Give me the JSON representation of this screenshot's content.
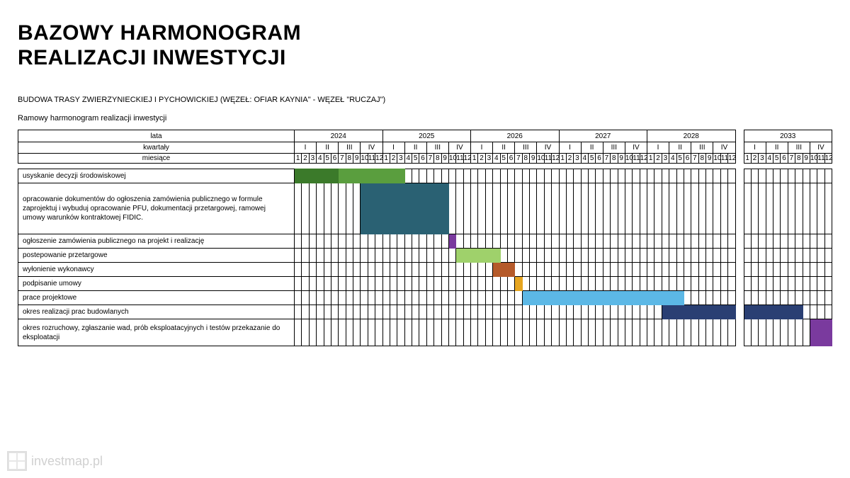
{
  "title_line1": "BAZOWY  HARMONOGRAM",
  "title_line2": "REALIZACJI INWESTYCJI",
  "subtitle1": "BUDOWA TRASY ZWIERZYNIECKIEJ I PYCHOWICKIEJ (WĘZEŁ: OFIAR KAYNIA\" - WĘZEŁ \"RUCZAJ\")",
  "subtitle2": "Ramowy harmonogram realizacji inwestycji",
  "header": {
    "lata": "lata",
    "kwartaly": "kwartały",
    "miesiace": "miesiące",
    "years_main": [
      "2024",
      "2025",
      "2026",
      "2027",
      "2028"
    ],
    "year_extra": "2033",
    "quarters": [
      "I",
      "II",
      "III",
      "IV"
    ],
    "months": [
      "1",
      "2",
      "3",
      "4",
      "5",
      "6",
      "7",
      "8",
      "9",
      "10",
      "11",
      "12"
    ]
  },
  "colors": {
    "green_dark": "#3b7a2a",
    "green_mid": "#5a9e3e",
    "teal": "#2a6173",
    "purple": "#7a3a9e",
    "lightgreen": "#9fd16b",
    "rust": "#b55a2a",
    "amber": "#e6a520",
    "skyblue": "#5cb8e6",
    "navy": "#2a3f73"
  },
  "tasks": [
    {
      "label": "usyskanie decyzji środowiskowej",
      "tall": false,
      "bars": [
        {
          "color": "green_dark",
          "start": 0,
          "end": 6
        },
        {
          "color": "green_mid",
          "start": 6,
          "end": 15
        }
      ]
    },
    {
      "label": "opracowanie dokumentów do ogłoszenia zamówienia publicznego w formule zaprojektuj i wybuduj opracowanie PFU, dokumentacji przetargowej, ramowej umowy warunków kontraktowej FIDIC.",
      "tall": true,
      "bars": [
        {
          "color": "teal",
          "start": 9,
          "end": 21
        }
      ]
    },
    {
      "label": "ogłoszenie zamówienia publicznego na projekt i realizację",
      "tall": false,
      "bars": [
        {
          "color": "purple",
          "start": 21,
          "end": 22
        }
      ]
    },
    {
      "label": "postepowanie przetargowe",
      "tall": false,
      "bars": [
        {
          "color": "lightgreen",
          "start": 22,
          "end": 28
        }
      ]
    },
    {
      "label": "wyłonienie wykonawcy",
      "tall": false,
      "bars": [
        {
          "color": "rust",
          "start": 27,
          "end": 30
        }
      ]
    },
    {
      "label": "podpisanie umowy",
      "tall": false,
      "bars": [
        {
          "color": "amber",
          "start": 30,
          "end": 31
        }
      ]
    },
    {
      "label": "prace projektowe",
      "tall": false,
      "bars": [
        {
          "color": "skyblue",
          "start": 31,
          "end": 53
        }
      ]
    },
    {
      "label": "okres realizacji prac budowlanych",
      "tall": false,
      "bars": [
        {
          "color": "navy",
          "start": 50,
          "end": 60
        },
        {
          "color": "navy",
          "start": 60,
          "end": 68,
          "inExtra": true
        }
      ]
    },
    {
      "label": "okres rozruchowy, zgłaszanie wad, prób eksploatacyjnych i testów przekazanie do eksploatacji",
      "tall": "two",
      "bars": [
        {
          "color": "purple",
          "start": 69,
          "end": 72,
          "inExtra": true
        }
      ]
    }
  ],
  "watermark": "investmap.pl"
}
